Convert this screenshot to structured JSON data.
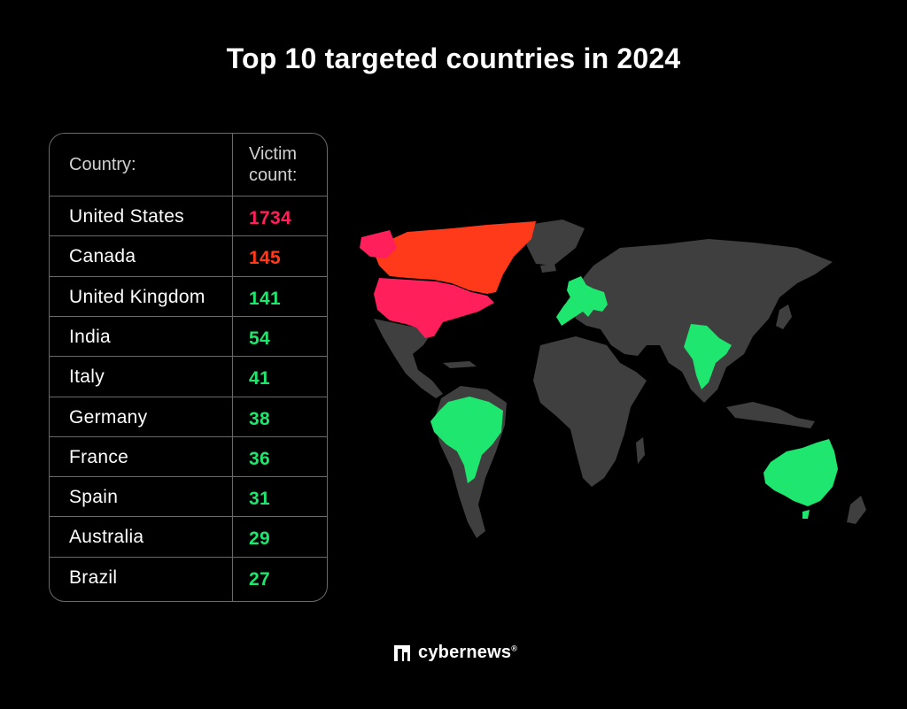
{
  "title": "Top 10 targeted countries in 2024",
  "table": {
    "header_country": "Country:",
    "header_count_line1": "Victim",
    "header_count_line2": "count:",
    "rows": [
      {
        "country": "United States",
        "count": "1734",
        "color": "#ff1f5a"
      },
      {
        "country": "Canada",
        "count": "145",
        "color": "#ff3a1a"
      },
      {
        "country": "United Kingdom",
        "count": "141",
        "color": "#1ee66e"
      },
      {
        "country": "India",
        "count": "54",
        "color": "#1ee66e"
      },
      {
        "country": "Italy",
        "count": "41",
        "color": "#1ee66e"
      },
      {
        "country": "Germany",
        "count": "38",
        "color": "#1ee66e"
      },
      {
        "country": "France",
        "count": "36",
        "color": "#1ee66e"
      },
      {
        "country": "Spain",
        "count": "31",
        "color": "#1ee66e"
      },
      {
        "country": "Australia",
        "count": "29",
        "color": "#1ee66e"
      },
      {
        "country": "Brazil",
        "count": "27",
        "color": "#1ee66e"
      }
    ]
  },
  "map": {
    "land_color": "#3f3f3f",
    "highlights": {
      "united_states": "#ff1f5a",
      "canada": "#ff3a1a",
      "europe_group": "#1ee66e",
      "india": "#1ee66e",
      "brazil": "#1ee66e",
      "australia": "#1ee66e"
    }
  },
  "brand": {
    "name": "cybernews",
    "reg": "®"
  }
}
